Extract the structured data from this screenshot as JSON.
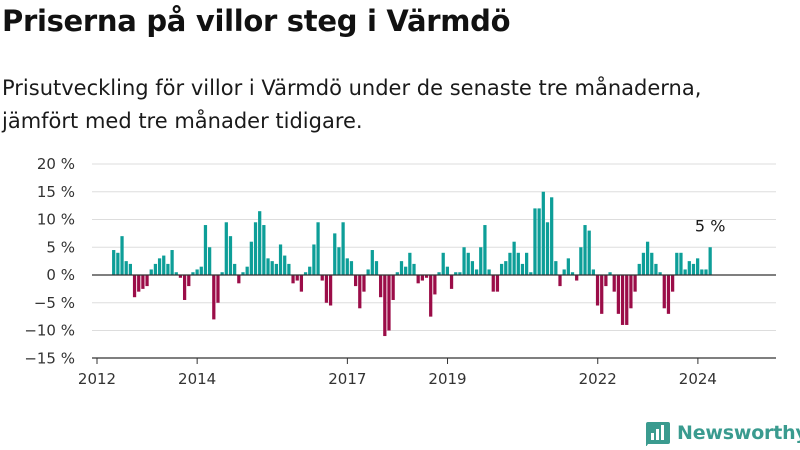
{
  "header": {
    "title": "Priserna på villor steg i Värmdö",
    "subtitle": "Prisutveckling för villor i Värmdö under de senaste tre månaderna, jämfört med tre månader tidigare."
  },
  "brand": {
    "name": "Newsworthy"
  },
  "colors": {
    "positive": "#0d9e98",
    "negative": "#9b0d48",
    "grid": "#dddddd",
    "axis": "#555555"
  },
  "chart_data": {
    "type": "bar",
    "title": "",
    "xlabel": "",
    "ylabel": "",
    "ylim": [
      -15,
      20
    ],
    "xlim": [
      2011.9,
      2025.56
    ],
    "yticks": [
      20,
      15,
      10,
      5,
      0,
      -5,
      -10,
      -15
    ],
    "ytick_labels": [
      "20 %",
      "15 %",
      "10 %",
      "5 %",
      "0 %",
      "−5 %",
      "−10 %",
      "−15 %"
    ],
    "xticks": [
      2012,
      2014,
      2017,
      2019,
      2022,
      2024
    ],
    "xtick_labels": [
      "2012",
      "2014",
      "2017",
      "2019",
      "2022",
      "2024"
    ],
    "grid": true,
    "bar_start_year": 2012.3333,
    "bar_step_years": 0.0833,
    "values": [
      4.5,
      4,
      7,
      2.5,
      2,
      -4,
      -3,
      -2.5,
      -2,
      1,
      2,
      3,
      3.5,
      2,
      4.5,
      0.5,
      -0.5,
      -4.5,
      -2,
      0.5,
      1,
      1.5,
      9,
      5,
      -8,
      -5,
      0.5,
      9.5,
      7,
      2,
      -1.5,
      0.5,
      1.5,
      6,
      9.5,
      11.5,
      9,
      3,
      2.5,
      2,
      5.5,
      3.5,
      2,
      -1.5,
      -1,
      -3,
      0.5,
      1.5,
      5.5,
      9.5,
      -1,
      -5,
      -5.5,
      7.5,
      5,
      9.5,
      3,
      2.5,
      -2,
      -6,
      -3,
      1,
      4.5,
      2.5,
      -4,
      -11,
      -10,
      -4.5,
      0.5,
      2.5,
      1.5,
      4,
      2,
      -1.5,
      -1,
      -0.5,
      -7.5,
      -3.5,
      0.5,
      4,
      1.5,
      -2.5,
      0.5,
      0.5,
      5,
      4,
      2.5,
      1,
      5,
      9,
      1,
      -3,
      -3,
      2,
      2.5,
      4,
      6,
      4,
      2,
      4,
      0.5,
      12,
      12,
      15,
      9.5,
      14,
      2.5,
      -2,
      1,
      3,
      0.5,
      -1,
      5,
      9,
      8,
      1,
      -5.5,
      -7,
      -2,
      0.5,
      -3,
      -7,
      -9,
      -9,
      -6,
      -3,
      2,
      4,
      6,
      4,
      2,
      0.5,
      -6,
      -7,
      -3,
      4,
      4,
      1,
      2.5,
      2,
      3,
      1,
      1,
      5
    ],
    "annotation": {
      "text": "5 %",
      "value": 5
    }
  }
}
